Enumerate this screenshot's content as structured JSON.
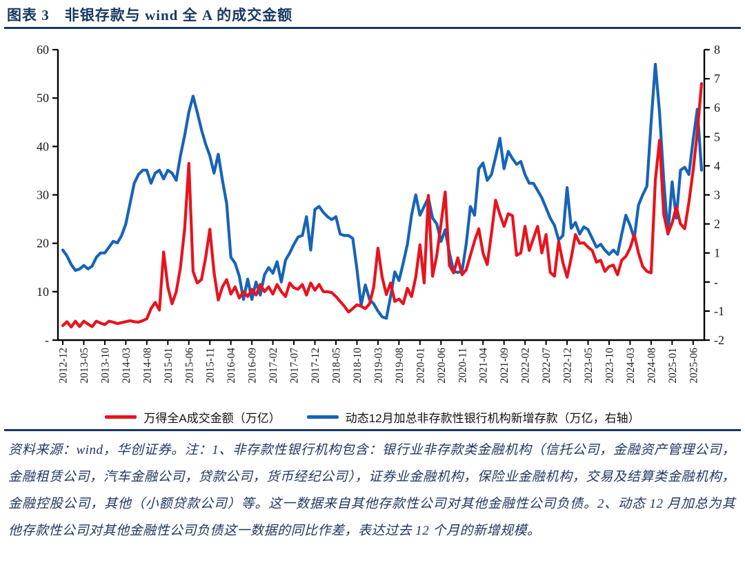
{
  "page": {
    "title": "图表 3　非银存款与 wind 全 A 的成交金额"
  },
  "source_note": "资料来源：wind，华创证券。注：1、非存款性银行机构包含：银行业非存款类金融机构（信托公司，金融资产管理公司，金融租赁公司，汽车金融公司，贷款公司，货币经纪公司），证券业金融机构，保险业金融机构，交易及结算类金融机构，金融控股公司，其他（小额贷款公司）等。这一数据来自其他存款性公司对其他金融性公司负债。2、动态 12 月加总为其他存款性公司对其他金融性公司负债这一数据的同比作差，表达过去 12 个月的新增规模。",
  "chart_data": {
    "type": "line",
    "title": "",
    "x_start": "2012-12",
    "x_end": "2025-08",
    "x_tick_labels": [
      "2012-12",
      "2013-05",
      "2013-10",
      "2014-03",
      "2014-08",
      "2015-01",
      "2015-06",
      "2015-11",
      "2016-04",
      "2016-09",
      "2017-02",
      "2017-07",
      "2017-12",
      "2018-05",
      "2018-10",
      "2019-03",
      "2019-08",
      "2020-01",
      "2020-06",
      "2020-11",
      "2021-04",
      "2021-09",
      "2022-02",
      "2022-07",
      "2022-12",
      "2023-05",
      "2023-10",
      "2024-03",
      "2024-08",
      "2025-01",
      "2025-06"
    ],
    "x_tick_every": 5,
    "left_axis": {
      "min": 0,
      "max": 60,
      "step": 10,
      "tick_labels_bottom_up": [
        "-",
        "10",
        "20",
        "30",
        "40",
        "50",
        "60"
      ]
    },
    "right_axis": {
      "min": -2,
      "max": 8,
      "step": 1,
      "tick_labels_bottom_up": [
        "-2",
        "-1",
        "-",
        "1",
        "2",
        "3",
        "4",
        "5",
        "6",
        "7",
        "8"
      ]
    },
    "grid": false,
    "legend_position": "bottom-center",
    "series": [
      {
        "name": "万得全A成交金额（万亿）",
        "axis": "left",
        "color": "#e8131d",
        "values": [
          3.0,
          3.8,
          2.7,
          3.9,
          2.8,
          3.9,
          3.3,
          2.8,
          3.9,
          3.5,
          3.2,
          3.9,
          3.7,
          3.4,
          3.6,
          3.8,
          4.0,
          3.8,
          3.7,
          4.0,
          4.4,
          6.5,
          7.8,
          6.2,
          18.2,
          11.0,
          7.5,
          10.0,
          15.0,
          23.0,
          36.5,
          14.2,
          11.8,
          12.5,
          17.0,
          22.9,
          14.0,
          8.3,
          11.0,
          12.5,
          9.5,
          11.0,
          8.7,
          10.0,
          9.0,
          10.5,
          9.3,
          11.5,
          10.0,
          11.0,
          9.5,
          11.5,
          10.0,
          9.0,
          11.8,
          10.8,
          10.5,
          11.5,
          9.3,
          11.8,
          10.3,
          11.5,
          10.0,
          10.0,
          9.8,
          9.0,
          8.0,
          7.0,
          5.8,
          6.5,
          7.3,
          7.0,
          6.5,
          7.5,
          11.0,
          19.0,
          13.0,
          9.4,
          11.8,
          8.0,
          8.5,
          7.5,
          10.7,
          9.0,
          13.0,
          19.7,
          11.8,
          29.9,
          13.2,
          17.5,
          24.0,
          30.6,
          15.4,
          13.9,
          17.0,
          13.5,
          14.5,
          17.5,
          20.5,
          23.0,
          18.0,
          15.6,
          22.0,
          28.9,
          26.0,
          23.5,
          26.1,
          25.7,
          17.5,
          18.0,
          23.5,
          18.5,
          21.0,
          23.5,
          18.0,
          21.8,
          14.0,
          13.2,
          20.4,
          16.0,
          13.0,
          17.0,
          21.8,
          20.0,
          20.1,
          19.2,
          18.5,
          16.1,
          16.5,
          14.2,
          15.2,
          15.5,
          13.5,
          16.5,
          17.3,
          19.0,
          21.8,
          18.0,
          15.2,
          14.2,
          13.9,
          33.0,
          41.3,
          26.0,
          22.0,
          24.2,
          27.5,
          24.0,
          23.0,
          28.5,
          35.0,
          43.0,
          53.0
        ]
      },
      {
        "name": "动态12月加总非存款性银行机构新增存款（万亿，右轴）",
        "axis": "right",
        "color": "#1763b8",
        "values": [
          1.1,
          0.9,
          0.6,
          0.4,
          0.45,
          0.57,
          0.45,
          0.55,
          0.85,
          1.0,
          1.0,
          1.2,
          1.4,
          1.35,
          1.6,
          2.0,
          2.7,
          3.4,
          3.7,
          3.85,
          3.85,
          3.4,
          3.75,
          3.85,
          3.55,
          3.85,
          3.75,
          3.5,
          4.35,
          5.05,
          5.85,
          6.4,
          5.85,
          5.25,
          4.75,
          4.35,
          3.75,
          4.4,
          3.5,
          2.7,
          0.85,
          0.65,
          0.2,
          -0.6,
          0.1,
          -0.6,
          0.0,
          -0.45,
          0.25,
          0.5,
          0.3,
          0.7,
          0.0,
          0.75,
          1.0,
          1.3,
          1.55,
          1.6,
          2.25,
          1.1,
          2.5,
          2.6,
          2.4,
          2.25,
          2.15,
          2.25,
          1.65,
          1.6,
          1.6,
          1.5,
          0.45,
          -0.8,
          -0.1,
          -0.6,
          -0.75,
          -1.0,
          -1.2,
          -1.25,
          -0.5,
          0.35,
          0.05,
          0.65,
          1.3,
          2.3,
          3.0,
          2.3,
          2.6,
          2.9,
          2.2,
          2.0,
          1.4,
          1.8,
          1.0,
          0.37,
          0.33,
          0.37,
          1.3,
          2.6,
          2.3,
          3.9,
          4.1,
          3.5,
          3.7,
          4.3,
          4.95,
          3.9,
          4.5,
          4.25,
          4.05,
          4.15,
          3.7,
          3.4,
          3.4,
          3.15,
          2.9,
          2.55,
          2.2,
          1.95,
          1.45,
          1.6,
          3.25,
          1.85,
          2.05,
          1.65,
          1.9,
          1.8,
          1.5,
          1.2,
          1.3,
          1.1,
          0.95,
          1.1,
          0.95,
          1.65,
          2.3,
          1.95,
          1.5,
          2.65,
          3.0,
          3.3,
          5.5,
          7.5,
          5.85,
          3.5,
          1.65,
          3.45,
          2.2,
          3.85,
          3.95,
          3.7,
          4.9,
          5.95,
          3.85
        ]
      }
    ]
  }
}
